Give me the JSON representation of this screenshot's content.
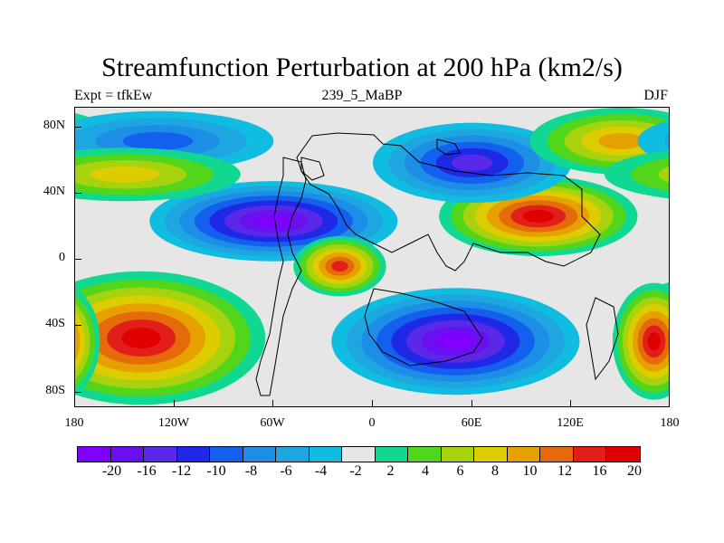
{
  "title": "Streamfunction Perturbation at 200 hPa (km2/s)",
  "subtitle_left": "Expt = tfkEw",
  "subtitle_center": "239_5_MaBP",
  "subtitle_right": "DJF",
  "y_ticks": [
    "80N",
    "40N",
    "0",
    "40S",
    "80S"
  ],
  "x_ticks": [
    "180",
    "120W",
    "60W",
    "0",
    "60E",
    "120E",
    "180"
  ],
  "colorbar": {
    "labels": [
      "-20",
      "-16",
      "-12",
      "-10",
      "-8",
      "-6",
      "-4",
      "-2",
      "2",
      "4",
      "6",
      "8",
      "10",
      "12",
      "16",
      "20"
    ],
    "colors": [
      "#7f00ff",
      "#6a0ff0",
      "#5a28e8",
      "#1e28e6",
      "#1460ee",
      "#1c8ee6",
      "#1ea6e0",
      "#10bce0",
      "#e6e6e6",
      "#10d890",
      "#52d61c",
      "#a6d20e",
      "#dccc00",
      "#e6a000",
      "#e46a0a",
      "#e21e1a",
      "#e00000"
    ]
  },
  "chart_data": {
    "type": "heatmap",
    "title": "Streamfunction Perturbation at 200 hPa (km2/s)",
    "x_axis": {
      "ticks": [
        "180",
        "120W",
        "60W",
        "0",
        "60E",
        "120E",
        "180"
      ],
      "range": [
        -180,
        180
      ],
      "unit": "degrees longitude"
    },
    "y_axis": {
      "ticks": [
        "80N",
        "40N",
        "0",
        "40S",
        "80S"
      ],
      "range": [
        -90,
        90
      ],
      "unit": "degrees latitude"
    },
    "levels": [
      -20,
      -16,
      -12,
      -10,
      -8,
      -6,
      -4,
      -2,
      2,
      4,
      6,
      8,
      10,
      12,
      16,
      20
    ],
    "features": [
      {
        "lon": -60,
        "lat": 22,
        "value": -20
      },
      {
        "lon": 100,
        "lat": 25,
        "value": 20
      },
      {
        "lon": 50,
        "lat": -50,
        "value": -20
      },
      {
        "lon": -140,
        "lat": -48,
        "value": 20
      },
      {
        "lon": -20,
        "lat": -5,
        "value": 16
      },
      {
        "lon": 60,
        "lat": 57,
        "value": -12
      },
      {
        "lon": 150,
        "lat": 70,
        "value": 10
      },
      {
        "lon": -130,
        "lat": 70,
        "value": -8
      },
      {
        "lon": -150,
        "lat": 50,
        "value": 8
      },
      {
        "lon": 170,
        "lat": -50,
        "value": 20
      }
    ]
  }
}
